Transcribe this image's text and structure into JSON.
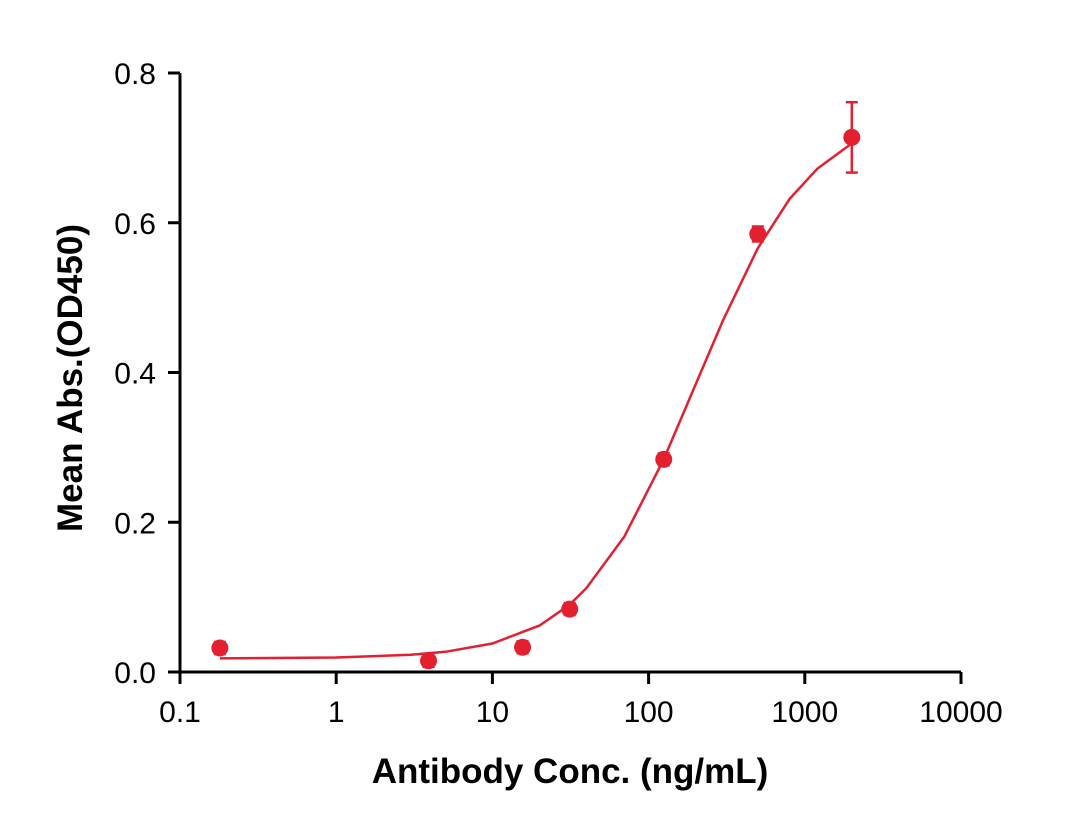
{
  "chart_data": {
    "type": "scatter",
    "x_label": "Antibody Conc. (ng/mL)",
    "y_label": "Mean Abs.(OD450)",
    "x_scale": "log",
    "xlim": [
      0.1,
      10000
    ],
    "xticks": [
      0.1,
      1,
      10,
      100,
      1000,
      10000
    ],
    "ylim": [
      0,
      0.8
    ],
    "yticks": [
      {
        "value": 0,
        "label": "0.0"
      },
      0.2,
      0.4,
      0.6,
      0.8
    ],
    "color": "#e3202f",
    "x": [
      0.18,
      3.9,
      15.6,
      31.25,
      125,
      500,
      2000
    ],
    "values": [
      0.032,
      0.015,
      0.033,
      0.084,
      0.284,
      0.585,
      0.714
    ],
    "errors": [
      0.008,
      0.008,
      0.008,
      0.008,
      0.008,
      0.01,
      0.047
    ],
    "curve": {
      "x": [
        0.18,
        0.3,
        1,
        3,
        5,
        10,
        20,
        31.25,
        40,
        70,
        125,
        200,
        300,
        500,
        800,
        1200,
        2000
      ],
      "values": [
        0.0182,
        0.0185,
        0.0193,
        0.023,
        0.027,
        0.038,
        0.062,
        0.09,
        0.112,
        0.181,
        0.284,
        0.384,
        0.47,
        0.566,
        0.632,
        0.672,
        0.706
      ]
    }
  }
}
